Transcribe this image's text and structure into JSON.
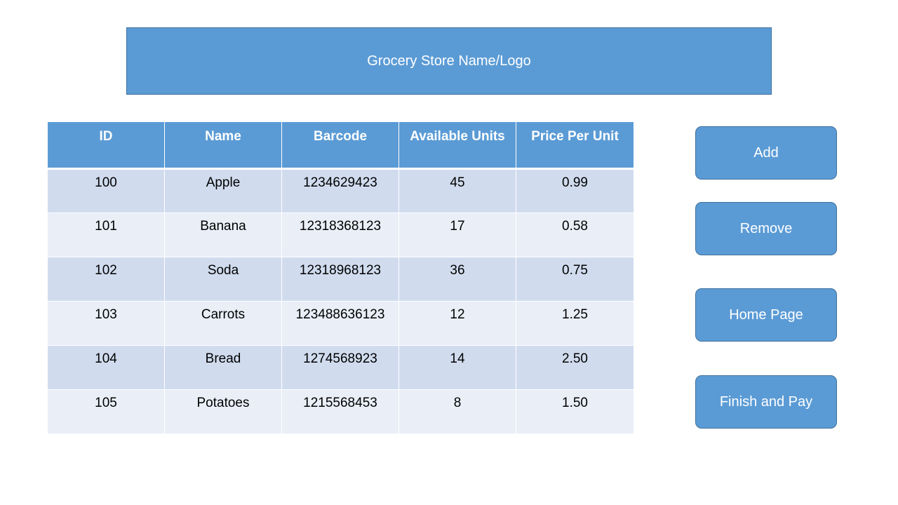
{
  "header": {
    "title": "Grocery Store Name/Logo"
  },
  "table": {
    "columns": [
      "ID",
      "Name",
      "Barcode",
      "Available Units",
      "Price Per Unit"
    ],
    "rows": [
      [
        "100",
        "Apple",
        "1234629423",
        "45",
        "0.99"
      ],
      [
        "101",
        "Banana",
        "12318368123",
        "17",
        "0.58"
      ],
      [
        "102",
        "Soda",
        "12318968123",
        "36",
        "0.75"
      ],
      [
        "103",
        "Carrots",
        "123488636123",
        "12",
        "1.25"
      ],
      [
        "104",
        "Bread",
        "1274568923",
        "14",
        "2.50"
      ],
      [
        "105",
        "Potatoes",
        "1215568453",
        "8",
        "1.50"
      ]
    ]
  },
  "actions": {
    "add": "Add",
    "remove": "Remove",
    "home": "Home Page",
    "finish": "Finish and Pay"
  },
  "colors": {
    "accent": "#5b9bd5",
    "border": "#41719c",
    "row_dark": "#d0dcee",
    "row_light": "#e9eef7"
  }
}
